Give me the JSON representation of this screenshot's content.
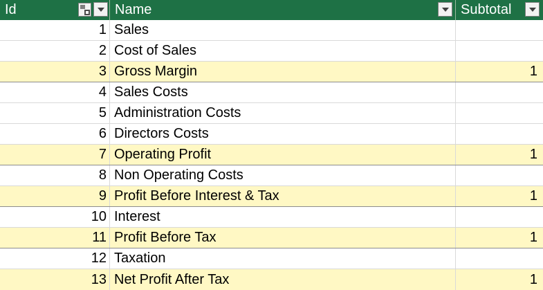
{
  "table": {
    "columns": [
      {
        "key": "id",
        "label": "Id"
      },
      {
        "key": "name",
        "label": "Name"
      },
      {
        "key": "subtotal",
        "label": "Subtotal"
      }
    ],
    "rows": [
      {
        "id": "1",
        "name": "Sales",
        "subtotal": ""
      },
      {
        "id": "2",
        "name": "Cost of Sales",
        "subtotal": ""
      },
      {
        "id": "3",
        "name": "Gross Margin",
        "subtotal": "1"
      },
      {
        "id": "4",
        "name": "Sales Costs",
        "subtotal": ""
      },
      {
        "id": "5",
        "name": "Administration Costs",
        "subtotal": ""
      },
      {
        "id": "6",
        "name": "Directors Costs",
        "subtotal": ""
      },
      {
        "id": "7",
        "name": "Operating Profit",
        "subtotal": "1"
      },
      {
        "id": "8",
        "name": "Non Operating Costs",
        "subtotal": ""
      },
      {
        "id": "9",
        "name": "Profit Before Interest & Tax",
        "subtotal": "1"
      },
      {
        "id": "10",
        "name": "Interest",
        "subtotal": ""
      },
      {
        "id": "11",
        "name": "Profit Before Tax",
        "subtotal": "1"
      },
      {
        "id": "12",
        "name": "Taxation",
        "subtotal": ""
      },
      {
        "id": "13",
        "name": "Net Profit After Tax",
        "subtotal": "1"
      }
    ]
  },
  "icons": {
    "sort_indicator": "sort-ascending-icon",
    "filter_dropdown": "filter-dropdown-icon"
  },
  "colors": {
    "header_bg": "#1e7145",
    "header_text": "#ffffff",
    "subtotal_row_bg": "#fff8c4"
  }
}
